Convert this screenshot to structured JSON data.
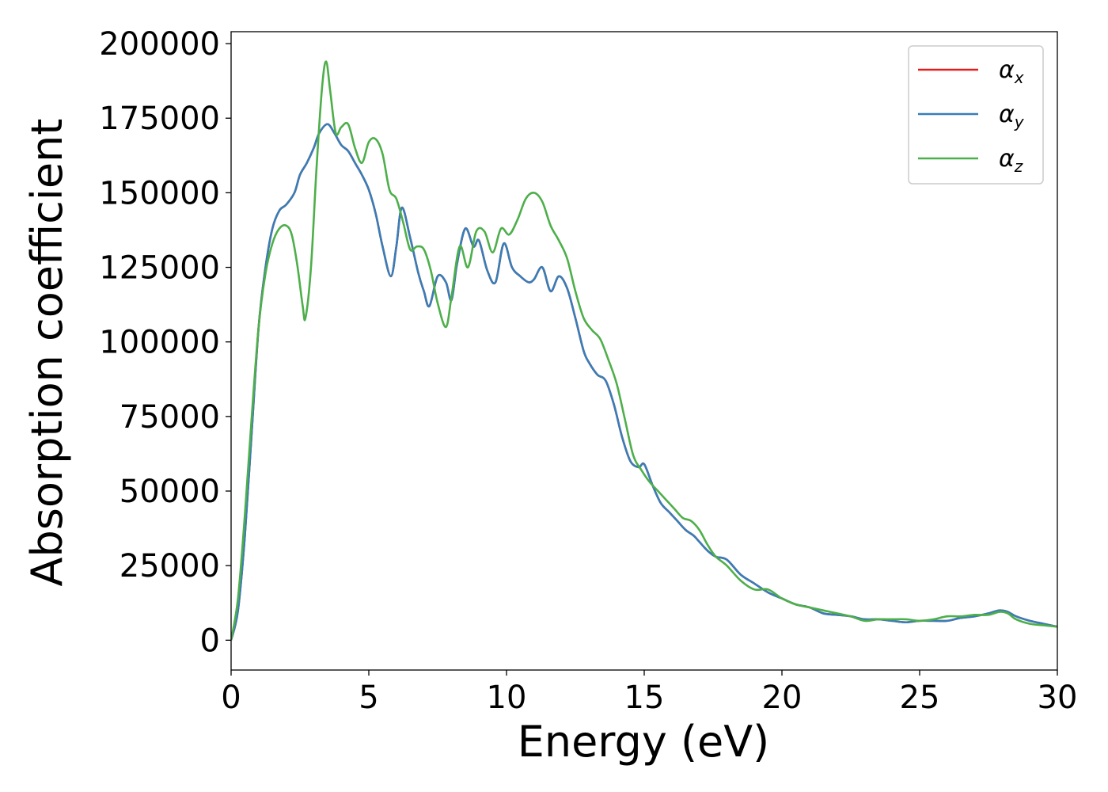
{
  "chart_data": {
    "type": "line",
    "xlabel": "Energy (eV)",
    "ylabel": "Absorption coefficient",
    "xlim": [
      0,
      30
    ],
    "ylim": [
      -10000,
      204000
    ],
    "xticks": [
      0,
      5,
      10,
      15,
      20,
      25,
      30
    ],
    "yticks": [
      0,
      25000,
      50000,
      75000,
      100000,
      125000,
      150000,
      175000,
      200000
    ],
    "grid": false,
    "legend_position": "top-right",
    "series": [
      {
        "name": "α_x",
        "legend_symbol": "α",
        "legend_subscript": "x",
        "color": "#e41a1c",
        "x": [
          0,
          0.25,
          0.5,
          0.75,
          1.0,
          1.25,
          1.5,
          1.75,
          2.0,
          2.3,
          2.5,
          2.75,
          3.0,
          3.2,
          3.5,
          3.75,
          4.0,
          4.25,
          4.5,
          4.75,
          5.0,
          5.25,
          5.5,
          5.8,
          6.0,
          6.2,
          6.5,
          6.8,
          7.0,
          7.2,
          7.5,
          7.8,
          8.0,
          8.2,
          8.5,
          8.8,
          9.0,
          9.3,
          9.6,
          9.9,
          10.2,
          10.5,
          10.8,
          11.0,
          11.3,
          11.6,
          11.9,
          12.2,
          12.5,
          12.8,
          13.0,
          13.3,
          13.6,
          13.9,
          14.2,
          14.5,
          14.8,
          15.0,
          15.3,
          15.6,
          15.9,
          16.2,
          16.5,
          16.8,
          17.0,
          17.3,
          17.6,
          18.0,
          18.5,
          19.0,
          19.5,
          20.0,
          20.5,
          21.0,
          21.5,
          22.0,
          22.5,
          23.0,
          23.5,
          24.0,
          24.5,
          25.0,
          25.5,
          26.0,
          26.5,
          27.0,
          27.5,
          27.9,
          28.2,
          28.5,
          29.0,
          29.5,
          30.0
        ],
        "y": [
          0,
          10000,
          35000,
          70000,
          105000,
          125000,
          138000,
          144000,
          146000,
          150000,
          156000,
          160000,
          165000,
          170000,
          173000,
          170000,
          166000,
          164000,
          160000,
          156000,
          151000,
          143000,
          132000,
          122000,
          132000,
          145000,
          135000,
          123000,
          117000,
          112000,
          122000,
          120000,
          114000,
          126000,
          138000,
          132000,
          134000,
          124000,
          120000,
          133000,
          125000,
          122000,
          120000,
          121000,
          125000,
          117000,
          122000,
          118000,
          108000,
          97000,
          93000,
          89000,
          87000,
          79000,
          68000,
          60000,
          58000,
          59000,
          52000,
          46000,
          43000,
          40000,
          37000,
          35000,
          33000,
          30000,
          28000,
          27000,
          22000,
          19000,
          16000,
          14000,
          12000,
          11000,
          9000,
          8500,
          8000,
          7000,
          7000,
          6500,
          6000,
          6500,
          6500,
          6500,
          7500,
          8000,
          9000,
          10000,
          9500,
          8000,
          6500,
          5500,
          4500
        ]
      },
      {
        "name": "α_y",
        "legend_symbol": "α",
        "legend_subscript": "y",
        "color": "#377eb8",
        "x": [
          0,
          0.25,
          0.5,
          0.75,
          1.0,
          1.25,
          1.5,
          1.75,
          2.0,
          2.3,
          2.5,
          2.75,
          3.0,
          3.2,
          3.5,
          3.75,
          4.0,
          4.25,
          4.5,
          4.75,
          5.0,
          5.25,
          5.5,
          5.8,
          6.0,
          6.2,
          6.5,
          6.8,
          7.0,
          7.2,
          7.5,
          7.8,
          8.0,
          8.2,
          8.5,
          8.8,
          9.0,
          9.3,
          9.6,
          9.9,
          10.2,
          10.5,
          10.8,
          11.0,
          11.3,
          11.6,
          11.9,
          12.2,
          12.5,
          12.8,
          13.0,
          13.3,
          13.6,
          13.9,
          14.2,
          14.5,
          14.8,
          15.0,
          15.3,
          15.6,
          15.9,
          16.2,
          16.5,
          16.8,
          17.0,
          17.3,
          17.6,
          18.0,
          18.5,
          19.0,
          19.5,
          20.0,
          20.5,
          21.0,
          21.5,
          22.0,
          22.5,
          23.0,
          23.5,
          24.0,
          24.5,
          25.0,
          25.5,
          26.0,
          26.5,
          27.0,
          27.5,
          27.9,
          28.2,
          28.5,
          29.0,
          29.5,
          30.0
        ],
        "y": [
          0,
          10000,
          35000,
          70000,
          105000,
          125000,
          138000,
          144000,
          146000,
          150000,
          156000,
          160000,
          165000,
          170000,
          173000,
          170000,
          166000,
          164000,
          160000,
          156000,
          151000,
          143000,
          132000,
          122000,
          132000,
          145000,
          135000,
          123000,
          117000,
          112000,
          122000,
          120000,
          114000,
          126000,
          138000,
          132000,
          134000,
          124000,
          120000,
          133000,
          125000,
          122000,
          120000,
          121000,
          125000,
          117000,
          122000,
          118000,
          108000,
          97000,
          93000,
          89000,
          87000,
          79000,
          68000,
          60000,
          58000,
          59000,
          52000,
          46000,
          43000,
          40000,
          37000,
          35000,
          33000,
          30000,
          28000,
          27000,
          22000,
          19000,
          16000,
          14000,
          12000,
          11000,
          9000,
          8500,
          8000,
          7000,
          7000,
          6500,
          6000,
          6500,
          6500,
          6500,
          7500,
          8000,
          9000,
          10000,
          9500,
          8000,
          6500,
          5500,
          4500
        ]
      },
      {
        "name": "α_z",
        "legend_symbol": "α",
        "legend_subscript": "z",
        "color": "#4daf4a",
        "x": [
          0,
          0.25,
          0.5,
          0.75,
          1.0,
          1.25,
          1.5,
          1.75,
          2.0,
          2.2,
          2.4,
          2.6,
          2.7,
          2.9,
          3.1,
          3.3,
          3.45,
          3.6,
          3.8,
          4.0,
          4.25,
          4.5,
          4.75,
          5.0,
          5.25,
          5.5,
          5.75,
          6.0,
          6.25,
          6.5,
          6.75,
          7.0,
          7.25,
          7.5,
          7.8,
          8.0,
          8.3,
          8.6,
          8.9,
          9.2,
          9.5,
          9.8,
          10.1,
          10.4,
          10.7,
          11.0,
          11.3,
          11.6,
          11.9,
          12.2,
          12.5,
          12.8,
          13.1,
          13.4,
          13.7,
          14.0,
          14.3,
          14.6,
          14.9,
          15.2,
          15.5,
          15.8,
          16.1,
          16.4,
          16.7,
          17.0,
          17.3,
          17.6,
          18.0,
          18.5,
          19.0,
          19.5,
          20.0,
          20.5,
          21.0,
          21.5,
          22.0,
          22.5,
          23.0,
          23.5,
          24.0,
          24.5,
          25.0,
          25.5,
          26.0,
          26.5,
          27.0,
          27.5,
          27.9,
          28.2,
          28.5,
          29.0,
          29.5,
          30.0
        ],
        "y": [
          0,
          14000,
          42000,
          75000,
          105000,
          123000,
          133000,
          138000,
          139000,
          136000,
          126000,
          112000,
          108000,
          125000,
          158000,
          185000,
          194000,
          184000,
          170000,
          172000,
          173000,
          165000,
          160000,
          167000,
          168000,
          163000,
          151000,
          148000,
          140000,
          131000,
          132000,
          131000,
          124000,
          113000,
          105000,
          115000,
          132000,
          125000,
          137000,
          137000,
          130000,
          138000,
          136000,
          141000,
          148000,
          150000,
          147000,
          139000,
          134000,
          128000,
          117000,
          108000,
          104000,
          101000,
          94000,
          86000,
          74000,
          62000,
          57000,
          53000,
          50000,
          47000,
          44000,
          41000,
          40000,
          37000,
          32000,
          28000,
          25000,
          20000,
          17000,
          17000,
          14000,
          12000,
          11000,
          10000,
          9000,
          8000,
          6500,
          7000,
          7000,
          7000,
          6500,
          7000,
          8000,
          8000,
          8500,
          8500,
          9500,
          9000,
          7000,
          5500,
          5000,
          4500
        ]
      }
    ]
  }
}
